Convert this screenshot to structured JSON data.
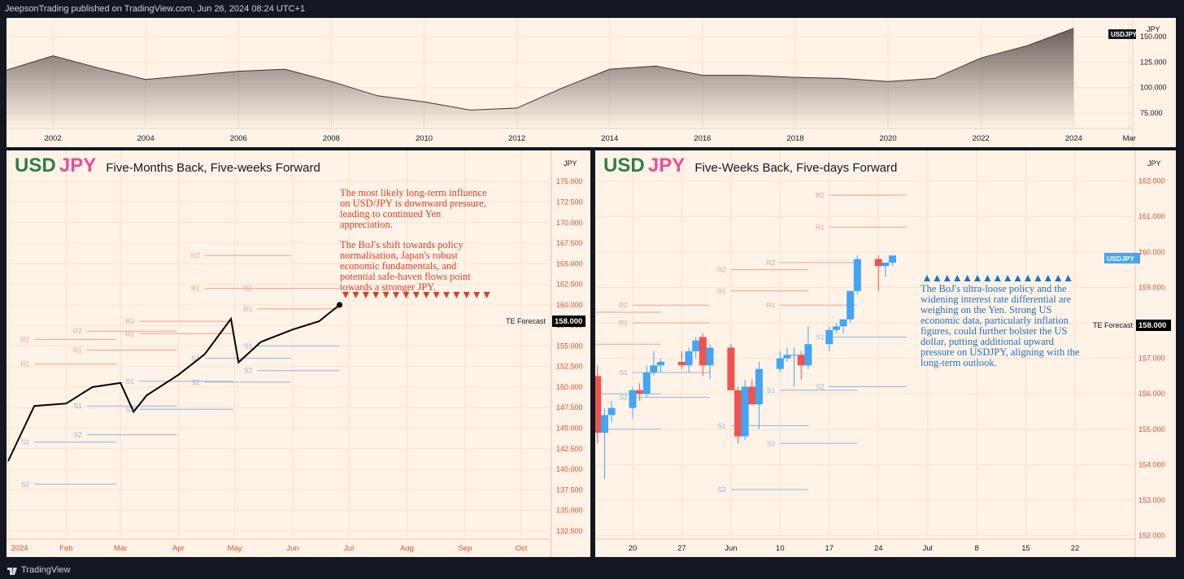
{
  "header": {
    "published": "JeepsonTrading published on TradingView.com, Jun 26, 2024 08:24 UTC+1"
  },
  "footer": {
    "brand": "TradingView"
  },
  "colors": {
    "background": "#131722",
    "panel": "#fff2e6",
    "usd": "#2e7d4f",
    "jpy": "#e84f9b",
    "resistance": "#f0a090",
    "support": "#8fb8e0",
    "up": "#42a5f5",
    "down": "#ef5350"
  },
  "overview": {
    "currency": "JPY",
    "symbol_tag": "USDJPY",
    "y_ticks": [
      "150.000",
      "125.000",
      "100.000",
      "75.000"
    ],
    "x_ticks": [
      "2002",
      "2004",
      "2006",
      "2008",
      "2010",
      "2012",
      "2014",
      "2016",
      "2018",
      "2020",
      "2022",
      "2024",
      "Mar"
    ]
  },
  "left": {
    "usd": "USD",
    "jpy": "JPY",
    "subtitle": "Five-Months Back, Five-weeks Forward",
    "currency": "JPY",
    "y_ticks": [
      "175.000",
      "172.500",
      "170.000",
      "167.500",
      "165.000",
      "162.500",
      "160.000",
      "157.500",
      "155.000",
      "152.500",
      "150.000",
      "147.500",
      "145.000",
      "142.500",
      "140.000",
      "137.500",
      "135.000",
      "132.500"
    ],
    "x_ticks": [
      "2024",
      "Feb",
      "Mar",
      "Apr",
      "May",
      "Jun",
      "Jul",
      "Aug",
      "Sep",
      "Oct"
    ],
    "forecast_label": "TE Forecast",
    "forecast_value": "158.000",
    "note1": "The most likely long-term influence on USD/JPY is downward pressure, leading to continued Yen appreciation.",
    "note2": "The BoJ's shift towards policy normalisation, Japan's robust economic fundamentals, and potential safe-haven flows point towards a stronger JPY.",
    "pivot_labels": [
      "R2",
      "R1",
      "S1",
      "S2"
    ]
  },
  "right": {
    "usd": "USD",
    "jpy": "JPY",
    "subtitle": "Five-Weeks Back, Five-days Forward",
    "currency": "JPY",
    "symbol_tag": "USDJPY",
    "y_ticks": [
      "162.000",
      "161.000",
      "160.000",
      "159.000",
      "158.000",
      "157.000",
      "156.000",
      "155.000",
      "154.000",
      "153.000",
      "152.000"
    ],
    "x_ticks": [
      "20",
      "27",
      "Jun",
      "10",
      "17",
      "24",
      "Jul",
      "8",
      "15",
      "22"
    ],
    "forecast_label": "TE Forecast",
    "forecast_value": "158.000",
    "note": "The BoJ's ultra-loose policy and the widening interest rate differential are weighing on the Yen. Strong US economic data, particularly inflation figures, could further bolster the US dollar, putting additional upward pressure on USDJPY, aligning with the long-term outlook.",
    "pivot_labels": [
      "R2",
      "R1",
      "S1",
      "S2"
    ]
  },
  "chart_data": [
    {
      "type": "area",
      "title": "",
      "x": [
        "2001",
        "2002",
        "2003",
        "2004",
        "2005",
        "2006",
        "2007",
        "2008",
        "2009",
        "2010",
        "2011",
        "2012",
        "2013",
        "2014",
        "2015",
        "2016",
        "2017",
        "2018",
        "2019",
        "2020",
        "2021",
        "2022",
        "2023",
        "2024"
      ],
      "values": [
        117,
        131,
        119,
        108,
        112,
        116,
        118,
        106,
        92,
        86,
        78,
        80,
        100,
        118,
        121,
        112,
        112,
        110,
        109,
        106,
        109,
        129,
        141,
        158
      ],
      "ylim": [
        60,
        165
      ],
      "grid": true
    },
    {
      "type": "line",
      "title": "",
      "x": [
        "2024-01-01",
        "2024-01-15",
        "2024-02-01",
        "2024-02-15",
        "2024-03-01",
        "2024-03-08",
        "2024-03-15",
        "2024-04-01",
        "2024-04-15",
        "2024-04-29",
        "2024-05-03",
        "2024-05-15",
        "2024-06-01",
        "2024-06-15",
        "2024-06-26"
      ],
      "values": [
        141,
        147.7,
        148,
        150,
        150.5,
        147,
        149,
        151.5,
        154,
        158.3,
        153,
        155.5,
        157,
        158,
        160
      ],
      "ylim": [
        131.5,
        177
      ],
      "pivots": [
        {
          "label": "R2",
          "value": 155.8
        },
        {
          "label": "R1",
          "value": 152.8
        },
        {
          "label": "S1",
          "value": 143.3
        },
        {
          "label": "S2",
          "value": 138.2
        },
        {
          "label": "R2",
          "value": 156.8
        },
        {
          "label": "R1",
          "value": 154.5
        },
        {
          "label": "S1",
          "value": 147.7
        },
        {
          "label": "S2",
          "value": 144.2
        },
        {
          "label": "R2",
          "value": 158.0
        },
        {
          "label": "R1",
          "value": 156.5
        },
        {
          "label": "S1",
          "value": 150.7
        },
        {
          "label": "S2",
          "value": 147.3
        },
        {
          "label": "R2",
          "value": 166.0
        },
        {
          "label": "R1",
          "value": 162.0
        },
        {
          "label": "S1",
          "value": 153.5
        },
        {
          "label": "S2",
          "value": 150.6
        },
        {
          "label": "R2",
          "value": 162.0
        },
        {
          "label": "R1",
          "value": 159.5
        },
        {
          "label": "S1",
          "value": 155.0
        },
        {
          "label": "S2",
          "value": 152.0
        }
      ],
      "forecast": 158
    },
    {
      "type": "candlestick",
      "title": "",
      "x": [
        "2024-05-15",
        "2024-05-16",
        "2024-05-17",
        "2024-05-20",
        "2024-05-21",
        "2024-05-22",
        "2024-05-23",
        "2024-05-24",
        "2024-05-27",
        "2024-05-28",
        "2024-05-29",
        "2024-05-30",
        "2024-05-31",
        "2024-06-03",
        "2024-06-04",
        "2024-06-05",
        "2024-06-06",
        "2024-06-07",
        "2024-06-10",
        "2024-06-11",
        "2024-06-12",
        "2024-06-13",
        "2024-06-14",
        "2024-06-17",
        "2024-06-18",
        "2024-06-19",
        "2024-06-20",
        "2024-06-21",
        "2024-06-24",
        "2024-06-25",
        "2024-06-26"
      ],
      "ohlc": [
        [
          156.5,
          156.8,
          154.6,
          154.9
        ],
        [
          154.9,
          155.6,
          153.6,
          155.4
        ],
        [
          155.4,
          155.8,
          155.2,
          155.6
        ],
        [
          155.6,
          156.2,
          155.3,
          156.1
        ],
        [
          156.1,
          156.3,
          155.8,
          156.0
        ],
        [
          156.0,
          156.8,
          155.9,
          156.6
        ],
        [
          156.6,
          157.2,
          156.5,
          156.8
        ],
        [
          156.8,
          157.0,
          156.6,
          156.9
        ],
        [
          156.9,
          157.2,
          156.7,
          156.8
        ],
        [
          156.8,
          157.3,
          156.6,
          157.2
        ],
        [
          157.2,
          157.6,
          157.0,
          157.5
        ],
        [
          157.6,
          157.7,
          156.5,
          156.8
        ],
        [
          156.8,
          157.4,
          156.4,
          157.3
        ],
        [
          157.3,
          157.4,
          156.1,
          156.1
        ],
        [
          156.1,
          156.2,
          154.6,
          154.8
        ],
        [
          154.8,
          156.4,
          154.7,
          156.2
        ],
        [
          156.2,
          156.4,
          155.7,
          155.7
        ],
        [
          155.7,
          156.9,
          155.0,
          156.7
        ],
        [
          156.7,
          157.2,
          156.6,
          157.0
        ],
        [
          157.0,
          157.3,
          156.9,
          157.1
        ],
        [
          157.1,
          157.3,
          156.2,
          157.1
        ],
        [
          157.1,
          157.2,
          156.4,
          156.8
        ],
        [
          156.8,
          157.9,
          156.7,
          157.4
        ],
        [
          157.4,
          157.9,
          157.2,
          157.8
        ],
        [
          157.8,
          158.0,
          157.7,
          157.9
        ],
        [
          157.9,
          158.1,
          157.7,
          158.1
        ],
        [
          158.1,
          158.9,
          158.0,
          158.9
        ],
        [
          158.9,
          159.9,
          158.8,
          159.8
        ],
        [
          159.8,
          159.9,
          158.9,
          159.6
        ],
        [
          159.6,
          159.7,
          159.3,
          159.7
        ],
        [
          159.7,
          159.9,
          159.6,
          159.9
        ]
      ],
      "ylim": [
        151.9,
        162.45
      ],
      "pivots": [
        {
          "label": "R2",
          "value": 158.3
        },
        {
          "label": "R1",
          "value": 157.4
        },
        {
          "label": "S1",
          "value": 156.0
        },
        {
          "label": "S2",
          "value": 155.0
        },
        {
          "label": "R2",
          "value": 158.5
        },
        {
          "label": "R1",
          "value": 158.0
        },
        {
          "label": "S1",
          "value": 156.6
        },
        {
          "label": "S2",
          "value": 155.9
        },
        {
          "label": "R2",
          "value": 159.5
        },
        {
          "label": "R1",
          "value": 158.9
        },
        {
          "label": "S1",
          "value": 155.1
        },
        {
          "label": "S2",
          "value": 153.3
        },
        {
          "label": "R2",
          "value": 159.7
        },
        {
          "label": "R1",
          "value": 158.5
        },
        {
          "label": "S1",
          "value": 156.1
        },
        {
          "label": "S2",
          "value": 154.6
        },
        {
          "label": "R2",
          "value": 161.6
        },
        {
          "label": "R1",
          "value": 160.7
        },
        {
          "label": "S1",
          "value": 157.6
        },
        {
          "label": "S2",
          "value": 156.2
        }
      ],
      "forecast": 158
    }
  ]
}
